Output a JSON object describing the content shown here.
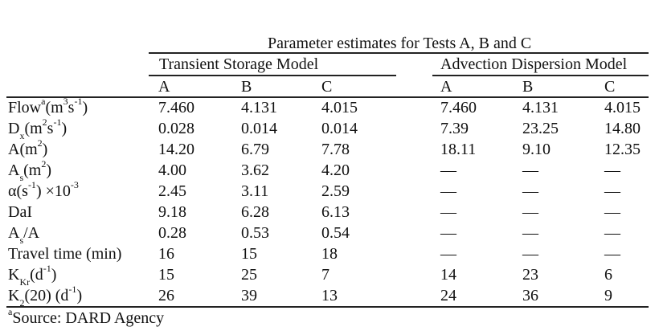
{
  "table": {
    "title": "Parameter estimates for Tests A, B and C",
    "group_tsm": "Transient Storage Model",
    "group_adm": "Advection Dispersion Model",
    "subcols": [
      "A",
      "B",
      "C",
      "A",
      "B",
      "C"
    ],
    "rows": [
      {
        "label": "Flow",
        "sup1": "a",
        "unit_pre": "(m",
        "sup2": "3",
        "mid": "s",
        "sup3": "-1",
        "unit_post": ")",
        "values": [
          "7.460",
          "4.131",
          "4.015",
          "7.460",
          "4.131",
          "4.015"
        ]
      },
      {
        "label": "D",
        "sub1": "x",
        "unit_pre": "(m",
        "sup2": "2",
        "mid": "s",
        "sup3": "-1",
        "unit_post": ")",
        "values": [
          "0.028",
          "0.014",
          "0.014",
          "7.39",
          "23.25",
          "14.80"
        ]
      },
      {
        "label": "A",
        "unit_pre": "(m",
        "sup2": "2",
        "unit_post": ")",
        "values": [
          "14.20",
          "6.79",
          "7.78",
          "18.11",
          "9.10",
          "12.35"
        ]
      },
      {
        "label": "A",
        "sub1": "s",
        "unit_pre": "(m",
        "sup2": "2",
        "unit_post": ")",
        "values": [
          "4.00",
          "3.62",
          "4.20",
          "—",
          "—",
          "—"
        ]
      },
      {
        "label": "α",
        "unit_pre": "(s",
        "sup2": "-1",
        "unit_post": ") ×10",
        "sup3": "-3",
        "values": [
          "2.45",
          "3.11",
          "2.59",
          "—",
          "—",
          "—"
        ]
      },
      {
        "label": "DaI",
        "values": [
          "9.18",
          "6.28",
          "6.13",
          "—",
          "—",
          "—"
        ]
      },
      {
        "label": "A",
        "sub1": "s",
        "unit_post": "/A",
        "values": [
          "0.28",
          "0.53",
          "0.54",
          "—",
          "—",
          "—"
        ]
      },
      {
        "label": "Travel time (min)",
        "values": [
          "16",
          "15",
          "18",
          "—",
          "—",
          "—"
        ]
      },
      {
        "label": "K",
        "sub1": "Kr",
        "unit_pre": "(d",
        "sup2": "-1",
        "unit_post": ")",
        "values": [
          "15",
          "25",
          "7",
          "14",
          "23",
          "6"
        ]
      },
      {
        "label": "K",
        "sub1": "2",
        "unit_pre": "(20) (d",
        "sup2": "-1",
        "unit_post": ")",
        "values": [
          "26",
          "39",
          "13",
          "24",
          "36",
          "9"
        ]
      }
    ],
    "footnote_mark": "a",
    "footnote_text": "Source: DARD Agency"
  }
}
